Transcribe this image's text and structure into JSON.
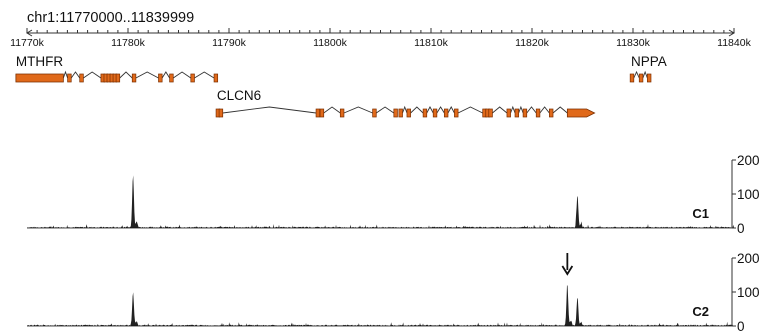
{
  "header": {
    "region": "chr1:11770000..11839999"
  },
  "ruler": {
    "range": [
      11770,
      11840
    ],
    "ticks": [
      {
        "value": 11770,
        "label": "11770k"
      },
      {
        "value": 11780,
        "label": "11780k"
      },
      {
        "value": 11790,
        "label": "11790k"
      },
      {
        "value": 11800,
        "label": "11800k"
      },
      {
        "value": 11810,
        "label": "11810k"
      },
      {
        "value": 11820,
        "label": "11820k"
      },
      {
        "value": 11830,
        "label": "11830k"
      },
      {
        "value": 11840,
        "label": "11840k"
      }
    ]
  },
  "colors": {
    "exon": "#e0691a",
    "exon_outline": "#7a2e00",
    "signal": "#222222",
    "axis": "#333333"
  },
  "genes": [
    {
      "name": "MTHFR",
      "row": 0,
      "start": 11768.9,
      "end": 11788.8,
      "strand": "-",
      "utr": [
        11768.9,
        11773.6
      ],
      "exons": [
        11774.2,
        11775.4,
        11777.5,
        11777.8,
        11778.1,
        11778.4,
        11778.7,
        11779.0,
        11780.6,
        11783.2,
        11784.3,
        11786.4,
        11788.7
      ]
    },
    {
      "name": "CLCN6",
      "row": 1,
      "start": 11788.8,
      "end": 11826.2,
      "strand": "+",
      "utr": [
        11823.5,
        11826.2
      ],
      "exons": [
        11788.9,
        11789.2,
        11798.8,
        11799.2,
        11801.2,
        11804.4,
        11806.5,
        11807.0,
        11807.8,
        11809.4,
        11810.4,
        11811.5,
        11812.5,
        11815.3,
        11815.6,
        11815.9,
        11817.7,
        11818.5,
        11819.3,
        11820.6,
        11821.9
      ]
    },
    {
      "name": "NPPA",
      "row": 0,
      "start": 11829.8,
      "end": 11831.8,
      "strand": "-",
      "utr": null,
      "exons": [
        11829.9,
        11830.8,
        11831.6
      ]
    }
  ],
  "tracks": [
    {
      "name": "C1",
      "ymax": 200,
      "ticks": [
        {
          "value": 200,
          "label": "200"
        },
        {
          "value": 100,
          "label": "100"
        },
        {
          "value": 0,
          "label": "0"
        }
      ],
      "peaks": [
        {
          "x": 11780.5,
          "h": 155
        },
        {
          "x": 11824.5,
          "h": 95
        }
      ],
      "arrow": null
    },
    {
      "name": "C2",
      "ymax": 200,
      "ticks": [
        {
          "value": 200,
          "label": "200"
        },
        {
          "value": 100,
          "label": "100"
        },
        {
          "value": 0,
          "label": "0"
        }
      ],
      "peaks": [
        {
          "x": 11780.5,
          "h": 100
        },
        {
          "x": 11823.5,
          "h": 120
        },
        {
          "x": 11824.5,
          "h": 85
        }
      ],
      "arrow": {
        "x": 11823.5
      }
    }
  ]
}
